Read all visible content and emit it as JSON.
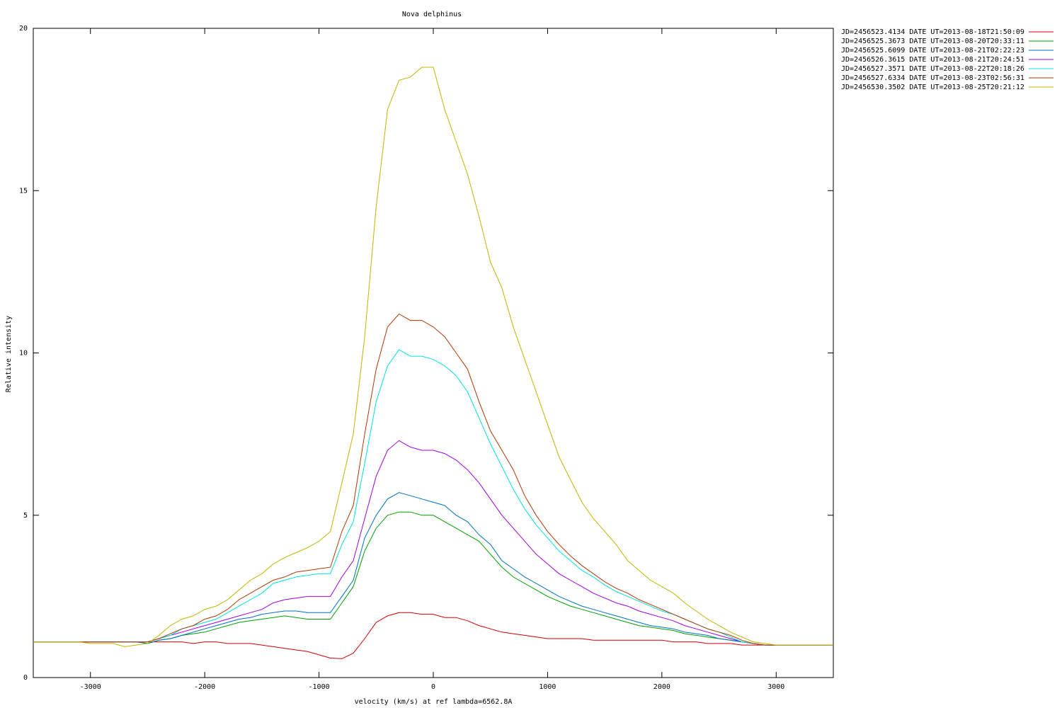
{
  "chart_data": {
    "type": "line",
    "title": "Nova delphinus",
    "x_label": "velocity (km/s)  at ref lambda=6562.8A",
    "y_label": "Relative intensity",
    "x": [
      -3500,
      -3400,
      -3300,
      -3200,
      -3100,
      -3000,
      -2900,
      -2800,
      -2700,
      -2600,
      -2500,
      -2400,
      -2300,
      -2200,
      -2100,
      -2000,
      -1900,
      -1800,
      -1700,
      -1600,
      -1500,
      -1400,
      -1300,
      -1200,
      -1100,
      -1000,
      -900,
      -800,
      -700,
      -600,
      -500,
      -400,
      -300,
      -200,
      -100,
      0,
      100,
      200,
      300,
      400,
      500,
      600,
      700,
      800,
      900,
      1000,
      1100,
      1200,
      1300,
      1400,
      1500,
      1600,
      1700,
      1800,
      1900,
      2000,
      2100,
      2200,
      2300,
      2400,
      2500,
      2600,
      2700,
      2800,
      2900,
      3000,
      3100,
      3200,
      3300,
      3400,
      3500
    ],
    "xlim": [
      -3500,
      3500
    ],
    "xticks": [
      -3000,
      -2000,
      -1000,
      0,
      1000,
      2000,
      3000
    ],
    "ylim": [
      0,
      20
    ],
    "yticks": [
      0,
      5,
      10,
      15,
      20
    ],
    "series": [
      {
        "name": "JD=2456523.4134 DATE UT=2013-08-18T21:50:09",
        "color": "#d00000",
        "values": [
          1.1,
          1.1,
          1.1,
          1.1,
          1.1,
          1.1,
          1.1,
          1.1,
          1.1,
          1.1,
          1.1,
          1.1,
          1.1,
          1.1,
          1.05,
          1.1,
          1.1,
          1.05,
          1.05,
          1.05,
          1.0,
          0.95,
          0.9,
          0.85,
          0.8,
          0.7,
          0.6,
          0.58,
          0.75,
          1.2,
          1.7,
          1.9,
          2.0,
          2.0,
          1.95,
          1.95,
          1.85,
          1.85,
          1.75,
          1.6,
          1.5,
          1.4,
          1.35,
          1.3,
          1.25,
          1.2,
          1.2,
          1.2,
          1.2,
          1.15,
          1.15,
          1.15,
          1.15,
          1.15,
          1.15,
          1.15,
          1.1,
          1.1,
          1.1,
          1.05,
          1.05,
          1.05,
          1.0,
          1.0,
          1.0,
          1.0,
          1.0,
          1.0,
          1.0,
          1.0,
          1.0
        ]
      },
      {
        "name": "JD=2456525.3673 DATE UT=2013-08-20T20:33:11",
        "color": "#00a000",
        "values": [
          1.1,
          1.1,
          1.1,
          1.1,
          1.1,
          1.1,
          1.1,
          1.1,
          1.1,
          1.1,
          1.05,
          1.15,
          1.2,
          1.3,
          1.35,
          1.4,
          1.5,
          1.6,
          1.7,
          1.75,
          1.8,
          1.85,
          1.9,
          1.85,
          1.8,
          1.8,
          1.8,
          2.3,
          2.8,
          3.9,
          4.6,
          5.0,
          5.1,
          5.1,
          5.0,
          5.0,
          4.8,
          4.6,
          4.4,
          4.2,
          3.8,
          3.4,
          3.1,
          2.9,
          2.7,
          2.5,
          2.35,
          2.2,
          2.1,
          2.0,
          1.9,
          1.8,
          1.7,
          1.6,
          1.55,
          1.5,
          1.45,
          1.35,
          1.3,
          1.25,
          1.2,
          1.15,
          1.1,
          1.05,
          1.0,
          1.0,
          1.0,
          1.0,
          1.0,
          1.0,
          1.0
        ]
      },
      {
        "name": "JD=2456525.6099 DATE UT=2013-08-21T02:22:23",
        "color": "#0070c0",
        "values": [
          1.1,
          1.1,
          1.1,
          1.1,
          1.1,
          1.1,
          1.1,
          1.1,
          1.1,
          1.1,
          1.05,
          1.15,
          1.2,
          1.3,
          1.4,
          1.5,
          1.6,
          1.7,
          1.8,
          1.85,
          1.95,
          2.0,
          2.05,
          2.05,
          2.0,
          2.0,
          2.0,
          2.5,
          3.0,
          4.3,
          5.0,
          5.5,
          5.7,
          5.6,
          5.5,
          5.4,
          5.3,
          5.0,
          4.8,
          4.4,
          4.1,
          3.6,
          3.35,
          3.1,
          2.9,
          2.7,
          2.5,
          2.35,
          2.2,
          2.1,
          2.0,
          1.9,
          1.8,
          1.7,
          1.6,
          1.55,
          1.5,
          1.4,
          1.35,
          1.3,
          1.2,
          1.15,
          1.1,
          1.05,
          1.0,
          1.0,
          1.0,
          1.0,
          1.0,
          1.0,
          1.0
        ]
      },
      {
        "name": "JD=2456526.3615 DATE UT=2013-08-21T20:24:51",
        "color": "#a000e0",
        "values": [
          1.1,
          1.1,
          1.1,
          1.1,
          1.1,
          1.1,
          1.1,
          1.1,
          1.1,
          1.1,
          1.1,
          1.2,
          1.3,
          1.4,
          1.5,
          1.6,
          1.7,
          1.8,
          1.9,
          2.0,
          2.1,
          2.3,
          2.4,
          2.45,
          2.5,
          2.5,
          2.5,
          3.1,
          3.6,
          4.9,
          6.2,
          7.0,
          7.3,
          7.1,
          7.0,
          7.0,
          6.9,
          6.7,
          6.4,
          6.0,
          5.5,
          5.0,
          4.6,
          4.2,
          3.8,
          3.5,
          3.2,
          3.0,
          2.8,
          2.6,
          2.45,
          2.3,
          2.2,
          2.05,
          1.95,
          1.85,
          1.75,
          1.6,
          1.5,
          1.4,
          1.3,
          1.2,
          1.1,
          1.05,
          1.0,
          1.0,
          1.0,
          1.0,
          1.0,
          1.0,
          1.0
        ]
      },
      {
        "name": "JD=2456527.3571 DATE UT=2013-08-22T20:18:26",
        "color": "#00e0e0",
        "values": [
          1.1,
          1.1,
          1.1,
          1.1,
          1.1,
          1.1,
          1.1,
          1.1,
          1.1,
          1.1,
          1.1,
          1.2,
          1.3,
          1.5,
          1.6,
          1.7,
          1.8,
          2.0,
          2.2,
          2.4,
          2.6,
          2.9,
          3.0,
          3.1,
          3.15,
          3.2,
          3.2,
          4.1,
          4.8,
          6.6,
          8.5,
          9.6,
          10.1,
          9.9,
          9.9,
          9.8,
          9.6,
          9.3,
          8.8,
          8.0,
          7.2,
          6.5,
          5.8,
          5.2,
          4.7,
          4.3,
          3.9,
          3.6,
          3.3,
          3.1,
          2.85,
          2.65,
          2.5,
          2.35,
          2.2,
          2.05,
          1.95,
          1.8,
          1.65,
          1.5,
          1.4,
          1.25,
          1.1,
          1.05,
          1.0,
          1.0,
          1.0,
          1.0,
          1.0,
          1.0,
          1.0
        ]
      },
      {
        "name": "JD=2456527.6334 DATE UT=2013-08-23T02:56:31",
        "color": "#b03800",
        "values": [
          1.1,
          1.1,
          1.1,
          1.1,
          1.1,
          1.1,
          1.1,
          1.1,
          1.1,
          1.1,
          1.1,
          1.2,
          1.35,
          1.5,
          1.6,
          1.8,
          1.9,
          2.1,
          2.4,
          2.6,
          2.8,
          3.0,
          3.1,
          3.25,
          3.3,
          3.35,
          3.4,
          4.5,
          5.3,
          7.5,
          9.5,
          10.8,
          11.2,
          11.0,
          11.0,
          10.8,
          10.5,
          10.0,
          9.5,
          8.5,
          7.6,
          7.0,
          6.4,
          5.6,
          5.0,
          4.5,
          4.1,
          3.75,
          3.45,
          3.2,
          2.95,
          2.75,
          2.6,
          2.4,
          2.25,
          2.1,
          1.95,
          1.8,
          1.65,
          1.5,
          1.4,
          1.3,
          1.15,
          1.05,
          1.0,
          1.0,
          1.0,
          1.0,
          1.0,
          1.0,
          1.0
        ]
      },
      {
        "name": "JD=2456530.3502 DATE UT=2013-08-25T20:21:12",
        "color": "#c0b400",
        "values": [
          1.1,
          1.1,
          1.1,
          1.1,
          1.1,
          1.05,
          1.05,
          1.05,
          0.95,
          1.0,
          1.05,
          1.3,
          1.6,
          1.8,
          1.9,
          2.1,
          2.2,
          2.4,
          2.7,
          3.0,
          3.2,
          3.5,
          3.7,
          3.85,
          4.0,
          4.2,
          4.5,
          6.0,
          7.5,
          10.5,
          14.5,
          17.5,
          18.4,
          18.5,
          18.8,
          18.8,
          17.5,
          16.5,
          15.5,
          14.2,
          12.8,
          12.0,
          10.8,
          9.8,
          8.8,
          7.8,
          6.8,
          6.1,
          5.4,
          4.9,
          4.5,
          4.1,
          3.6,
          3.3,
          3.0,
          2.8,
          2.6,
          2.3,
          2.05,
          1.8,
          1.6,
          1.4,
          1.25,
          1.1,
          1.05,
          1.0,
          1.0,
          1.0,
          1.0,
          1.0,
          1.0
        ]
      }
    ]
  }
}
